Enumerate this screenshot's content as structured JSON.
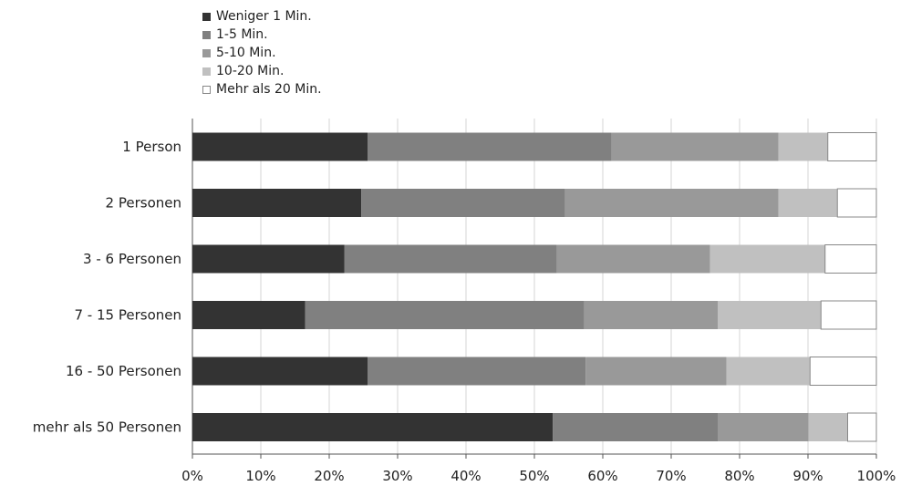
{
  "chart_data": {
    "type": "bar",
    "orientation": "horizontal",
    "stacked": true,
    "categories": [
      "1 Person",
      "2 Personen",
      "3 - 6 Personen",
      "7 - 15 Personen",
      "16 - 50 Personen",
      "mehr als 50 Personen"
    ],
    "series": [
      {
        "name": "Weniger 1 Min.",
        "color": "#333333",
        "values": [
          25.6,
          24.7,
          22.2,
          16.5,
          25.6,
          52.7
        ]
      },
      {
        "name": "1-5 Min.",
        "color": "#808080",
        "values": [
          35.7,
          29.8,
          31.1,
          40.8,
          31.9,
          24.1
        ]
      },
      {
        "name": "5-10 Min.",
        "color": "#999999",
        "values": [
          24.4,
          31.2,
          22.4,
          19.5,
          20.6,
          13.3
        ]
      },
      {
        "name": "10-20 Min.",
        "color": "#c0c0c0",
        "values": [
          7.2,
          8.6,
          16.8,
          15.1,
          12.2,
          5.7
        ]
      },
      {
        "name": "Mehr als 20 Min.",
        "color": "#ffffff",
        "values": [
          7.1,
          5.7,
          7.5,
          8.1,
          9.7,
          4.2
        ]
      }
    ],
    "xlim": [
      0,
      100
    ],
    "x_ticks": [
      "0%",
      "10%",
      "20%",
      "30%",
      "40%",
      "50%",
      "60%",
      "70%",
      "80%",
      "90%",
      "100%"
    ],
    "grid": true,
    "legend_position": "top-left"
  }
}
